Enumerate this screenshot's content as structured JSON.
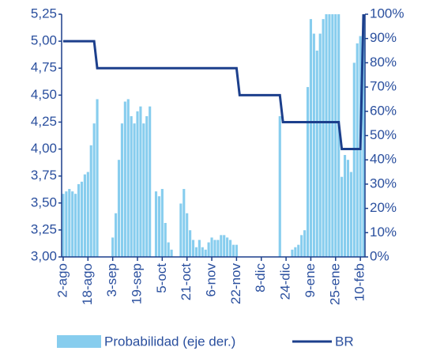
{
  "chart_data": {
    "type": "bar_line",
    "categories": [
      "2-ago",
      null,
      null,
      null,
      null,
      null,
      null,
      null,
      "18-ago",
      null,
      null,
      null,
      null,
      null,
      null,
      null,
      "3-sep",
      null,
      null,
      null,
      null,
      null,
      null,
      null,
      "19-sep",
      null,
      null,
      null,
      null,
      null,
      null,
      null,
      "5-oct",
      null,
      null,
      null,
      null,
      null,
      null,
      null,
      "21-oct",
      null,
      null,
      null,
      null,
      null,
      null,
      null,
      "6-nov",
      null,
      null,
      null,
      null,
      null,
      null,
      null,
      "22-nov",
      null,
      null,
      null,
      null,
      null,
      null,
      null,
      "8-dic",
      null,
      null,
      null,
      null,
      null,
      null,
      null,
      "24-dic",
      null,
      null,
      null,
      null,
      null,
      null,
      null,
      "9-ene",
      null,
      null,
      null,
      null,
      null,
      null,
      null,
      "25-ene",
      null,
      null,
      null,
      null,
      null,
      null,
      null,
      "10-feb",
      null
    ],
    "series": [
      {
        "name": "Probabilidad (eje der.)",
        "kind": "bar",
        "axis": "y2",
        "color": "#87cdee",
        "values": [
          26,
          27,
          28,
          27,
          26,
          30,
          31,
          34,
          35,
          46,
          55,
          65,
          0,
          0,
          0,
          0,
          8,
          18,
          40,
          55,
          64,
          65,
          58,
          55,
          60,
          62,
          55,
          58,
          62,
          0,
          27,
          25,
          28,
          14,
          6,
          3,
          0,
          0,
          22,
          28,
          18,
          11,
          7,
          4,
          7,
          4,
          3,
          6,
          8,
          7,
          7,
          9,
          9,
          8,
          7,
          5,
          5,
          0,
          0,
          0,
          0,
          0,
          0,
          0,
          0,
          0,
          0,
          0,
          0,
          0,
          58,
          0,
          0,
          0,
          3,
          4,
          5,
          9,
          11,
          70,
          98,
          92,
          85,
          92,
          98,
          100,
          100,
          100,
          100,
          100,
          33,
          42,
          40,
          35,
          80,
          88,
          91,
          100
        ]
      },
      {
        "name": "BR",
        "kind": "line",
        "axis": "y",
        "color": "#1c3f8c",
        "values": [
          5,
          5,
          5,
          5,
          5,
          5,
          5,
          5,
          5,
          5,
          5,
          4.75,
          4.75,
          4.75,
          4.75,
          4.75,
          4.75,
          4.75,
          4.75,
          4.75,
          4.75,
          4.75,
          4.75,
          4.75,
          4.75,
          4.75,
          4.75,
          4.75,
          4.75,
          4.75,
          4.75,
          4.75,
          4.75,
          4.75,
          4.75,
          4.75,
          4.75,
          4.75,
          4.75,
          4.75,
          4.75,
          4.75,
          4.75,
          4.75,
          4.75,
          4.75,
          4.75,
          4.75,
          4.75,
          4.75,
          4.75,
          4.75,
          4.75,
          4.75,
          4.75,
          4.75,
          4.75,
          4.5,
          4.5,
          4.5,
          4.5,
          4.5,
          4.5,
          4.5,
          4.5,
          4.5,
          4.5,
          4.5,
          4.5,
          4.5,
          4.5,
          4.25,
          4.25,
          4.25,
          4.25,
          4.25,
          4.25,
          4.25,
          4.25,
          4.25,
          4.25,
          4.25,
          4.25,
          4.25,
          4.25,
          4.25,
          4.25,
          4.25,
          4.25,
          4.25,
          4,
          4,
          4,
          4,
          4,
          4,
          4,
          5.25
        ]
      }
    ],
    "ylim": [
      3,
      5.25
    ],
    "yticks": [
      {
        "value": 3,
        "label": "3,00"
      },
      {
        "value": 3.25,
        "label": "3,25"
      },
      {
        "value": 3.5,
        "label": "3,50"
      },
      {
        "value": 3.75,
        "label": "3,75"
      },
      {
        "value": 4,
        "label": "4,00"
      },
      {
        "value": 4.25,
        "label": "4,25"
      },
      {
        "value": 4.5,
        "label": "4,50"
      },
      {
        "value": 4.75,
        "label": "4,75"
      },
      {
        "value": 5,
        "label": "5,00"
      },
      {
        "value": 5.25,
        "label": "5,25"
      }
    ],
    "y2lim": [
      0,
      100
    ],
    "y2ticks": [
      {
        "value": 0,
        "label": "0%"
      },
      {
        "value": 10,
        "label": "10%"
      },
      {
        "value": 20,
        "label": "20%"
      },
      {
        "value": 30,
        "label": "30%"
      },
      {
        "value": 40,
        "label": "40%"
      },
      {
        "value": 50,
        "label": "50%"
      },
      {
        "value": 60,
        "label": "60%"
      },
      {
        "value": 70,
        "label": "70%"
      },
      {
        "value": 80,
        "label": "80%"
      },
      {
        "value": 90,
        "label": "90%"
      },
      {
        "value": 100,
        "label": "100%"
      }
    ],
    "legend": "bottom"
  }
}
